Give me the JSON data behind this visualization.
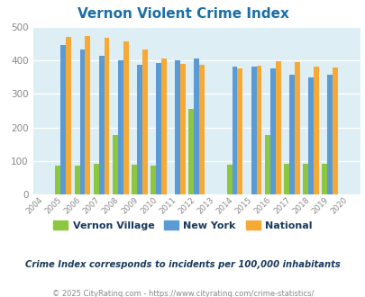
{
  "title": "Vernon Violent Crime Index",
  "years": [
    2004,
    2005,
    2006,
    2007,
    2008,
    2009,
    2010,
    2011,
    2012,
    2013,
    2014,
    2015,
    2016,
    2017,
    2018,
    2019,
    2020
  ],
  "vernon": [
    null,
    87,
    87,
    92,
    178,
    90,
    87,
    null,
    256,
    null,
    90,
    null,
    178,
    92,
    92,
    92,
    null
  ],
  "newyork": [
    null,
    445,
    433,
    413,
    400,
    387,
    393,
    400,
    406,
    null,
    382,
    380,
    377,
    356,
    350,
    357,
    null
  ],
  "national": [
    null,
    469,
    473,
    466,
    455,
    431,
    404,
    389,
    387,
    null,
    376,
    383,
    397,
    394,
    381,
    379,
    null
  ],
  "color_vernon": "#8dc63f",
  "color_newyork": "#5b9bd5",
  "color_national": "#f7a935",
  "plot_bg": "#ddeef5",
  "ylim": [
    0,
    500
  ],
  "yticks": [
    0,
    100,
    200,
    300,
    400,
    500
  ],
  "xlabel_note": "Crime Index corresponds to incidents per 100,000 inhabitants",
  "copyright": "© 2025 CityRating.com - https://www.cityrating.com/crime-statistics/",
  "legend_labels": [
    "Vernon Village",
    "New York",
    "National"
  ],
  "bar_width": 0.28,
  "title_color": "#1a6fa8",
  "legend_text_color": "#1a3a5c",
  "note_color": "#1a3a5c",
  "copyright_color": "#888888",
  "tick_color": "#888888"
}
